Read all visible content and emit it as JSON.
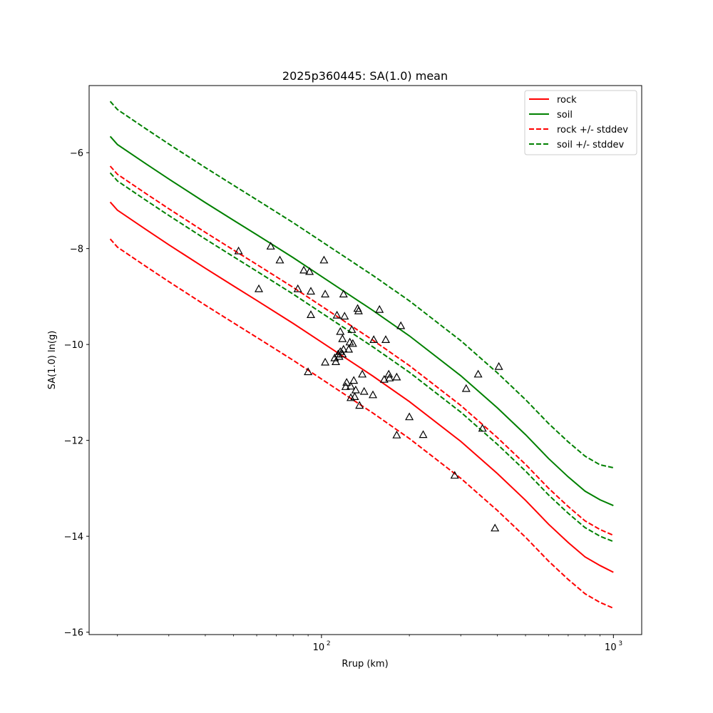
{
  "chart_data": {
    "type": "line",
    "title": "2025p360445: SA(1.0) mean",
    "xlabel": "Rrup (km)",
    "ylabel": "SA(1.0) ln(g)",
    "xscale": "log",
    "xlim": [
      16,
      1250
    ],
    "ylim": [
      -16.05,
      -4.6
    ],
    "xticks": [
      {
        "value": 100,
        "base": "10",
        "exp": "2"
      },
      {
        "value": 1000,
        "base": "10",
        "exp": "3"
      }
    ],
    "xminor_ticks": [
      20,
      30,
      40,
      50,
      60,
      70,
      80,
      90,
      200,
      300,
      400,
      500,
      600,
      700,
      800,
      900
    ],
    "yticks": [
      {
        "value": -16,
        "label": "−16"
      },
      {
        "value": -14,
        "label": "−14"
      },
      {
        "value": -12,
        "label": "−12"
      },
      {
        "value": -10,
        "label": "−10"
      },
      {
        "value": -8,
        "label": "−8"
      },
      {
        "value": -6,
        "label": "−6"
      }
    ],
    "grid": false,
    "legend_position": "top-right",
    "series": [
      {
        "name": "rock",
        "color": "#ff0000",
        "dash": "solid",
        "x": [
          18.9,
          20,
          25,
          30,
          40,
          50,
          60,
          80,
          100,
          150,
          200,
          300,
          400,
          500,
          600,
          700,
          800,
          900,
          1000
        ],
        "y": [
          -7.03,
          -7.2,
          -7.6,
          -7.92,
          -8.41,
          -8.78,
          -9.08,
          -9.56,
          -9.95,
          -10.66,
          -11.19,
          -12.02,
          -12.69,
          -13.25,
          -13.75,
          -14.13,
          -14.43,
          -14.61,
          -14.75
        ]
      },
      {
        "name": "soil",
        "color": "#008000",
        "dash": "solid",
        "x": [
          18.9,
          20,
          25,
          30,
          40,
          50,
          60,
          80,
          100,
          150,
          200,
          300,
          400,
          500,
          600,
          700,
          800,
          900,
          1000
        ],
        "y": [
          -5.66,
          -5.83,
          -6.23,
          -6.55,
          -7.04,
          -7.41,
          -7.71,
          -8.19,
          -8.58,
          -9.29,
          -9.82,
          -10.65,
          -11.32,
          -11.88,
          -12.38,
          -12.76,
          -13.06,
          -13.24,
          -13.36
        ]
      },
      {
        "name": "rock +/- stddev",
        "color": "#ff0000",
        "dash": "dashed",
        "x": [
          18.9,
          20,
          25,
          30,
          40,
          50,
          60,
          80,
          100,
          150,
          200,
          300,
          400,
          500,
          600,
          700,
          800,
          900,
          1000
        ],
        "y": [
          -6.28,
          -6.45,
          -6.85,
          -7.17,
          -7.66,
          -8.03,
          -8.33,
          -8.81,
          -9.2,
          -9.91,
          -10.44,
          -11.27,
          -11.94,
          -12.5,
          -13.0,
          -13.38,
          -13.68,
          -13.86,
          -13.98
        ]
      },
      {
        "name": "",
        "color": "#ff0000",
        "dash": "dashed",
        "x": [
          18.9,
          20,
          25,
          30,
          40,
          50,
          60,
          80,
          100,
          150,
          200,
          300,
          400,
          500,
          600,
          700,
          800,
          900,
          1000
        ],
        "y": [
          -7.8,
          -7.97,
          -8.37,
          -8.69,
          -9.18,
          -9.55,
          -9.85,
          -10.33,
          -10.72,
          -11.43,
          -11.96,
          -12.79,
          -13.46,
          -14.02,
          -14.52,
          -14.9,
          -15.2,
          -15.38,
          -15.5
        ]
      },
      {
        "name": "soil +/- stddev",
        "color": "#008000",
        "dash": "dashed",
        "x": [
          18.9,
          20,
          25,
          30,
          40,
          50,
          60,
          80,
          100,
          150,
          200,
          300,
          400,
          500,
          600,
          700,
          800,
          900,
          1000
        ],
        "y": [
          -4.93,
          -5.1,
          -5.5,
          -5.82,
          -6.31,
          -6.68,
          -6.98,
          -7.46,
          -7.85,
          -8.56,
          -9.09,
          -9.92,
          -10.59,
          -11.15,
          -11.65,
          -12.03,
          -12.33,
          -12.51,
          -12.57
        ]
      },
      {
        "name": "",
        "color": "#008000",
        "dash": "dashed",
        "x": [
          18.9,
          20,
          25,
          30,
          40,
          50,
          60,
          80,
          100,
          150,
          200,
          300,
          400,
          500,
          600,
          700,
          800,
          900,
          1000
        ],
        "y": [
          -6.42,
          -6.59,
          -6.99,
          -7.31,
          -7.8,
          -8.17,
          -8.47,
          -8.95,
          -9.34,
          -10.05,
          -10.58,
          -11.41,
          -12.08,
          -12.64,
          -13.14,
          -13.52,
          -13.82,
          -14.0,
          -14.11
        ]
      }
    ],
    "observations": {
      "marker": "triangle-open",
      "color": "#000000",
      "x": [
        52,
        61,
        67,
        72,
        83,
        87,
        91,
        92,
        92,
        90,
        102,
        103,
        103,
        111,
        112,
        113,
        114,
        115,
        116,
        116,
        118,
        118,
        119,
        119,
        120,
        121,
        122,
        124,
        125,
        126,
        126,
        127,
        128,
        129,
        130,
        131,
        133,
        134,
        135,
        138,
        140,
        150,
        151,
        158,
        164,
        166,
        170,
        171,
        181,
        181,
        187,
        200,
        223,
        286,
        313,
        344,
        356,
        393,
        405
      ],
      "y": [
        -8.05,
        -8.84,
        -7.95,
        -8.24,
        -8.84,
        -8.45,
        -8.48,
        -8.89,
        -9.38,
        -10.57,
        -8.24,
        -8.95,
        -10.37,
        -10.28,
        -10.36,
        -9.39,
        -10.2,
        -10.25,
        -10.15,
        -9.73,
        -9.88,
        -10.2,
        -10.1,
        -8.95,
        -9.41,
        -10.88,
        -10.79,
        -10.1,
        -9.95,
        -11.11,
        -10.87,
        -9.69,
        -9.98,
        -10.75,
        -11.09,
        -10.95,
        -9.25,
        -9.3,
        -11.27,
        -10.62,
        -10.98,
        -11.05,
        -9.9,
        -9.27,
        -10.73,
        -9.9,
        -10.62,
        -10.7,
        -10.68,
        -11.89,
        -9.61,
        -11.51,
        -11.88,
        -12.73,
        -10.92,
        -10.62,
        -11.75,
        -13.83,
        -10.46
      ]
    }
  }
}
